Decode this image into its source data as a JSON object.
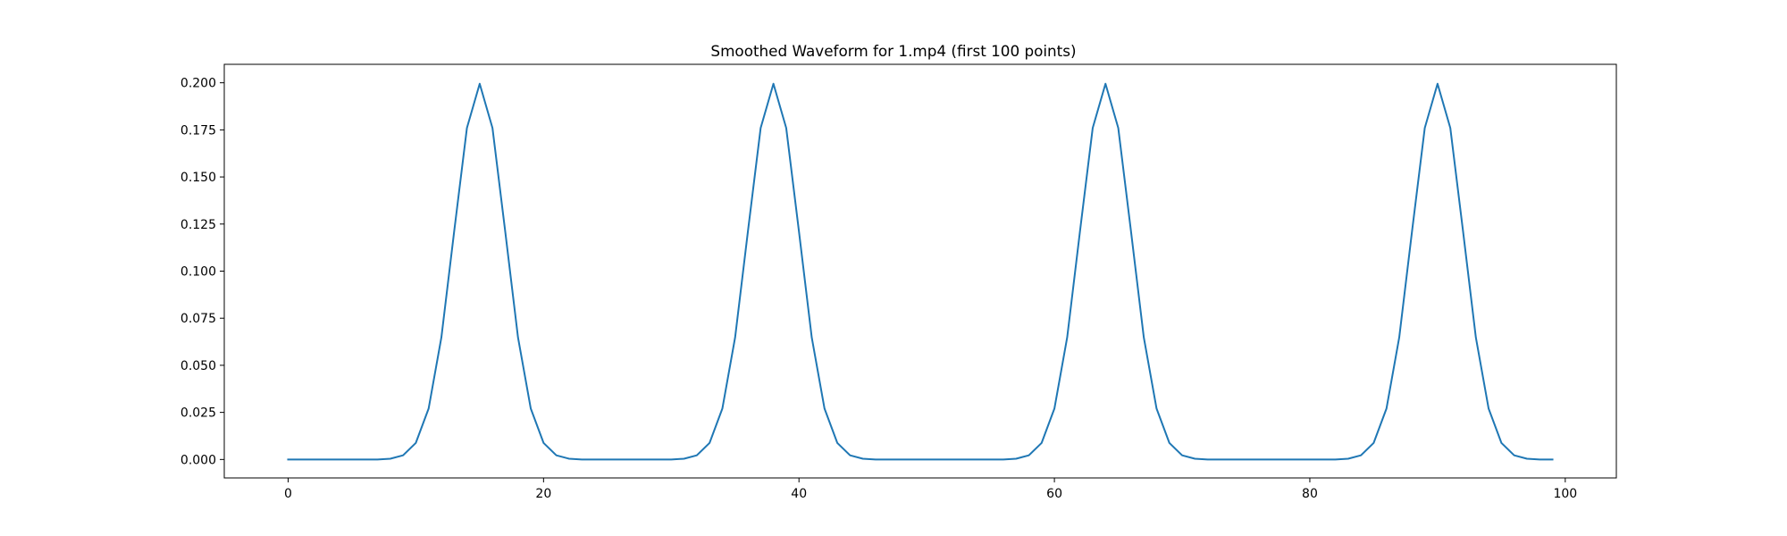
{
  "chart_data": {
    "type": "line",
    "title": "Smoothed Waveform for 1.mp4 (first 100 points)",
    "xlabel": "",
    "ylabel": "",
    "xlim": [
      -5,
      104
    ],
    "ylim": [
      -0.0098,
      0.2098
    ],
    "xticks": [
      0,
      20,
      40,
      60,
      80,
      100
    ],
    "xtick_labels": [
      "0",
      "20",
      "40",
      "60",
      "80",
      "100"
    ],
    "yticks": [
      0.0,
      0.025,
      0.05,
      0.075,
      0.1,
      0.125,
      0.15,
      0.175,
      0.2
    ],
    "ytick_labels": [
      "0.000",
      "0.025",
      "0.050",
      "0.075",
      "0.100",
      "0.125",
      "0.150",
      "0.175",
      "0.200"
    ],
    "grid": false,
    "legend": "none",
    "series": [
      {
        "color": "#1f77b4",
        "x": [
          0,
          1,
          2,
          3,
          4,
          5,
          6,
          7,
          8,
          9,
          10,
          11,
          12,
          13,
          14,
          15,
          16,
          17,
          18,
          19,
          20,
          21,
          22,
          23,
          24,
          25,
          26,
          27,
          28,
          29,
          30,
          31,
          32,
          33,
          34,
          35,
          36,
          37,
          38,
          39,
          40,
          41,
          42,
          43,
          44,
          45,
          46,
          47,
          48,
          49,
          50,
          51,
          52,
          53,
          54,
          55,
          56,
          57,
          58,
          59,
          60,
          61,
          62,
          63,
          64,
          65,
          66,
          67,
          68,
          69,
          70,
          71,
          72,
          73,
          74,
          75,
          76,
          77,
          78,
          79,
          80,
          81,
          82,
          83,
          84,
          85,
          86,
          87,
          88,
          89,
          90,
          91,
          92,
          93,
          94,
          95,
          96,
          97,
          98,
          99
        ],
        "y": [
          0.0,
          0.0,
          0.0,
          0.0,
          0.0,
          0.0,
          0.0,
          0.0,
          0.0004,
          0.0022,
          0.0088,
          0.027,
          0.0648,
          0.121,
          0.176,
          0.1995,
          0.176,
          0.121,
          0.0648,
          0.027,
          0.0088,
          0.0022,
          0.0004,
          0.0,
          0.0,
          0.0,
          0.0,
          0.0,
          0.0,
          0.0,
          0.0,
          0.0004,
          0.0022,
          0.0088,
          0.027,
          0.0648,
          0.121,
          0.176,
          0.1995,
          0.176,
          0.121,
          0.0648,
          0.027,
          0.0088,
          0.0022,
          0.0004,
          0.0,
          0.0,
          0.0,
          0.0,
          0.0,
          0.0,
          0.0,
          0.0,
          0.0,
          0.0,
          0.0,
          0.0004,
          0.0022,
          0.0088,
          0.027,
          0.0648,
          0.121,
          0.176,
          0.1995,
          0.176,
          0.121,
          0.0648,
          0.027,
          0.0088,
          0.0022,
          0.0004,
          0.0,
          0.0,
          0.0,
          0.0,
          0.0,
          0.0,
          0.0,
          0.0,
          0.0,
          0.0,
          0.0,
          0.0004,
          0.0022,
          0.0088,
          0.027,
          0.0648,
          0.121,
          0.176,
          0.1995,
          0.176,
          0.121,
          0.0648,
          0.027,
          0.0088,
          0.0022,
          0.0004,
          0.0,
          0.0
        ]
      }
    ]
  }
}
